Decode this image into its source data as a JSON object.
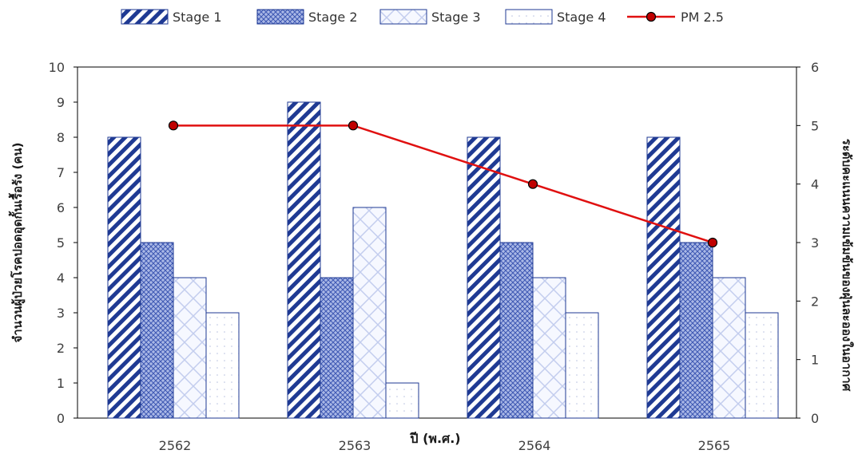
{
  "chart_data": {
    "type": "bar",
    "categories": [
      "2562",
      "2563",
      "2564",
      "2565"
    ],
    "series": [
      {
        "name": "Stage 1",
        "values": [
          8,
          9,
          8,
          8
        ],
        "axis": "left",
        "pattern": "diagonal-hatch"
      },
      {
        "name": "Stage 2",
        "values": [
          5,
          4,
          5,
          5
        ],
        "axis": "left",
        "pattern": "crosshatch-dense"
      },
      {
        "name": "Stage 3",
        "values": [
          4,
          6,
          4,
          4
        ],
        "axis": "left",
        "pattern": "crosshatch-light"
      },
      {
        "name": "Stage 4",
        "values": [
          3,
          1,
          3,
          3
        ],
        "axis": "left",
        "pattern": "dots"
      },
      {
        "name": "PM 2.5",
        "type": "line",
        "values": [
          5,
          5,
          4,
          3
        ],
        "axis": "right",
        "color": "#e01010"
      }
    ],
    "xlabel": "ปี (พ.ศ.)",
    "ylabel": "จำนวนผู้ป่วยโรคปอดอุดกั้นเรื้อรัง (คน)",
    "y2label": "ระดับคะแนนความเข้มข้นของฝุ่นละอองในอากาศ",
    "ylim": [
      0,
      10
    ],
    "y2lim": [
      0,
      6
    ],
    "yticks": [
      "0",
      "1",
      "2",
      "3",
      "4",
      "5",
      "6",
      "7",
      "8",
      "9",
      "10"
    ],
    "y2ticks": [
      "0",
      "1",
      "2",
      "3",
      "4",
      "5",
      "6"
    ],
    "legend_position": "top",
    "grid": false,
    "colors": {
      "bar_stroke": "#1f3a93",
      "bar_dark": "#1f3a93",
      "line": "#e01010",
      "marker_fill": "#c00000"
    }
  }
}
